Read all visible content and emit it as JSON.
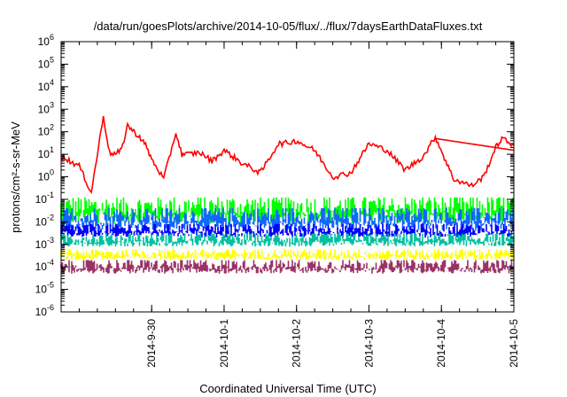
{
  "chart_data": {
    "type": "line",
    "title": "/data/run/goesPlots/archive/2014-10-05/flux/../flux/7daysEarthDataFluxes.txt",
    "xlabel": "Coordinated Universal Time (UTC)",
    "ylabel": "protons/cm²-s-sr-MeV",
    "yscale": "log",
    "ylim": [
      1e-06,
      1000000.0
    ],
    "y_ticks": [
      {
        "base": "10",
        "exp": "-6"
      },
      {
        "base": "10",
        "exp": "-5"
      },
      {
        "base": "10",
        "exp": "-4"
      },
      {
        "base": "10",
        "exp": "-3"
      },
      {
        "base": "10",
        "exp": "-2"
      },
      {
        "base": "10",
        "exp": "-1"
      },
      {
        "base": "10",
        "exp": "0"
      },
      {
        "base": "10",
        "exp": "1"
      },
      {
        "base": "10",
        "exp": "2"
      },
      {
        "base": "10",
        "exp": "3"
      },
      {
        "base": "10",
        "exp": "4"
      },
      {
        "base": "10",
        "exp": "5"
      },
      {
        "base": "10",
        "exp": "6"
      }
    ],
    "xlim": [
      "2014-09-28T18:00",
      "2014-10-05T00:00"
    ],
    "x_ticks": [
      "2014-9-30",
      "2014-10-1",
      "2014-10-2",
      "2014-10-3",
      "2014-10-4",
      "2014-10-5"
    ],
    "grid": false,
    "legend": "none",
    "series": [
      {
        "color": "#ff0000",
        "style": "line",
        "x": [
          "2014-09-28T18:00",
          "2014-09-29T00:00",
          "2014-09-29T04:00",
          "2014-09-29T06:00",
          "2014-09-29T08:00",
          "2014-09-29T10:00",
          "2014-09-29T12:00",
          "2014-09-29T14:00",
          "2014-09-29T16:00",
          "2014-09-29T18:00",
          "2014-09-29T20:00",
          "2014-09-29T22:00",
          "2014-09-30T00:00",
          "2014-09-30T04:00",
          "2014-09-30T08:00",
          "2014-09-30T10:00",
          "2014-09-30T12:00",
          "2014-09-30T16:00",
          "2014-09-30T20:00",
          "2014-10-01T00:00",
          "2014-10-01T06:00",
          "2014-10-01T12:00",
          "2014-10-01T18:00",
          "2014-10-01T20:00",
          "2014-10-02T00:00",
          "2014-10-02T06:00",
          "2014-10-02T12:00",
          "2014-10-02T18:00",
          "2014-10-03T00:00",
          "2014-10-03T06:00",
          "2014-10-03T12:00",
          "2014-10-03T18:00",
          "2014-10-03T22:00",
          "2014-10-04T04:00",
          "2014-10-04T10:00",
          "2014-10-04T14:00",
          "2014-10-04T18:00",
          "2014-10-04T20:00",
          "2014-10-05T00:00"
        ],
        "y": [
          8,
          3,
          0.2,
          10,
          500,
          12,
          10,
          15,
          200,
          100,
          60,
          25,
          6,
          0.8,
          90,
          10,
          10,
          12,
          5,
          15,
          4,
          1.5,
          30,
          30,
          40,
          15,
          1,
          1.5,
          30,
          15,
          2,
          8,
          60,
          0.8,
          0.4,
          1,
          20,
          50,
          25
        ]
      },
      {
        "color": "#ff0000",
        "style": "line",
        "x": [
          "2014-10-03T22:00",
          "2014-10-05T00:00"
        ],
        "y": [
          50,
          15
        ]
      },
      {
        "color": "#00ff00",
        "style": "band",
        "x": [
          "2014-09-28T18:00",
          "2014-10-05T00:00"
        ],
        "y_low": [
          0.008,
          0.008
        ],
        "y_high": [
          0.12,
          0.12
        ]
      },
      {
        "color": "#1166ff",
        "style": "band",
        "x": [
          "2014-09-28T18:00",
          "2014-10-05T00:00"
        ],
        "y_low": [
          0.004,
          0.004
        ],
        "y_high": [
          0.04,
          0.04
        ]
      },
      {
        "color": "#0000ff",
        "style": "band",
        "x": [
          "2014-09-28T18:00",
          "2014-10-05T00:00"
        ],
        "y_low": [
          0.002,
          0.002
        ],
        "y_high": [
          0.008,
          0.008
        ]
      },
      {
        "color": "#00c0a0",
        "style": "band",
        "x": [
          "2014-09-28T18:00",
          "2014-10-05T00:00"
        ],
        "y_low": [
          0.0008,
          0.0008
        ],
        "y_high": [
          0.003,
          0.003
        ]
      },
      {
        "color": "#ffff00",
        "style": "band",
        "x": [
          "2014-09-28T18:00",
          "2014-10-05T00:00"
        ],
        "y_low": [
          0.0002,
          0.0002
        ],
        "y_high": [
          0.0006,
          0.0006
        ]
      },
      {
        "color": "#993366",
        "style": "band",
        "x": [
          "2014-09-28T18:00",
          "2014-10-05T00:00"
        ],
        "y_low": [
          5e-05,
          5e-05
        ],
        "y_high": [
          0.0002,
          0.0002
        ]
      }
    ]
  }
}
